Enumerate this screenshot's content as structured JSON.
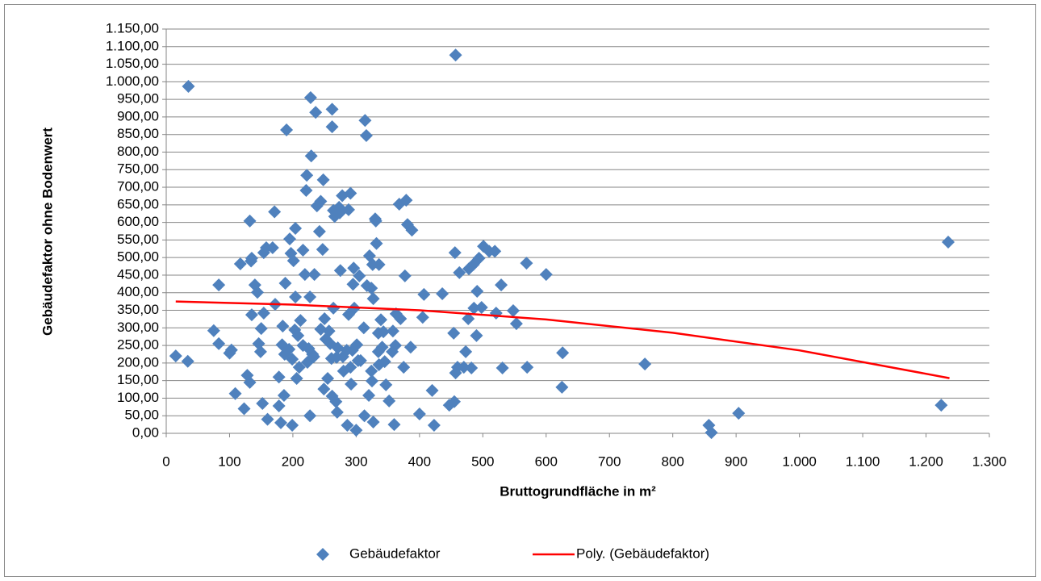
{
  "chart_data": {
    "type": "scatter",
    "x_label": "Bruttogrundfläche in m²",
    "y_label": "Gebäudefaktor ohne Bodenwert",
    "xlim": [
      0,
      1300
    ],
    "ylim": [
      0,
      1150
    ],
    "xticks": [
      0,
      100,
      200,
      300,
      400,
      500,
      600,
      700,
      800,
      900,
      {
        "value": 1000,
        "label": "1.000"
      },
      {
        "value": 1100,
        "label": "1.100"
      },
      {
        "value": 1200,
        "label": "1.200"
      },
      {
        "value": 1300,
        "label": "1.300"
      }
    ],
    "yticks": [
      {
        "value": 0,
        "label": "0,00"
      },
      {
        "value": 50,
        "label": "50,00"
      },
      {
        "value": 100,
        "label": "100,00"
      },
      {
        "value": 150,
        "label": "150,00"
      },
      {
        "value": 200,
        "label": "200,00"
      },
      {
        "value": 250,
        "label": "250,00"
      },
      {
        "value": 300,
        "label": "300,00"
      },
      {
        "value": 350,
        "label": "350,00"
      },
      {
        "value": 400,
        "label": "400,00"
      },
      {
        "value": 450,
        "label": "450,00"
      },
      {
        "value": 500,
        "label": "500,00"
      },
      {
        "value": 550,
        "label": "550,00"
      },
      {
        "value": 600,
        "label": "600,00"
      },
      {
        "value": 650,
        "label": "650,00"
      },
      {
        "value": 700,
        "label": "700,00"
      },
      {
        "value": 750,
        "label": "750,00"
      },
      {
        "value": 800,
        "label": "800,00"
      },
      {
        "value": 850,
        "label": "850,00"
      },
      {
        "value": 900,
        "label": "900,00"
      },
      {
        "value": 950,
        "label": "950,00"
      },
      {
        "value": 1000,
        "label": "1.000,00"
      },
      {
        "value": 1050,
        "label": "1.050,00"
      },
      {
        "value": 1100,
        "label": "1.100,00"
      },
      {
        "value": 1150,
        "label": "1.150,00"
      }
    ],
    "grid": true,
    "legend": "bottom",
    "series": [
      {
        "name": "Gebäudefaktor",
        "mark": "diamond",
        "color": "#4f81bd",
        "x": [
          15,
          34,
          35,
          75,
          83,
          83,
          100,
          103,
          109,
          123,
          117,
          128,
          132,
          132,
          134,
          135,
          135,
          140,
          144,
          146,
          149,
          150,
          152,
          154,
          154,
          158,
          160,
          168,
          171,
          172,
          178,
          178,
          181,
          183,
          184,
          186,
          187,
          188,
          190,
          194,
          195,
          197,
          199,
          199,
          201,
          203,
          204,
          204,
          206,
          208,
          210,
          212,
          216,
          216,
          219,
          221,
          222,
          223,
          225,
          227,
          227,
          228,
          229,
          231,
          233,
          234,
          236,
          238,
          242,
          244,
          244,
          247,
          248,
          249,
          250,
          252,
          255,
          257,
          259,
          261,
          262,
          262,
          262,
          264,
          264,
          266,
          268,
          269,
          270,
          271,
          273,
          274,
          275,
          278,
          279,
          280,
          285,
          286,
          288,
          288,
          291,
          292,
          291,
          294,
          295,
          296,
          297,
          300,
          301,
          303,
          305,
          307,
          312,
          313,
          314,
          316,
          317,
          320,
          321,
          324,
          324,
          325,
          326,
          327,
          327,
          330,
          331,
          332,
          335,
          335,
          336,
          336,
          339,
          341,
          343,
          345,
          347,
          352,
          357,
          358,
          360,
          362,
          363,
          368,
          370,
          375,
          377,
          379,
          381,
          386,
          388,
          400,
          405,
          407,
          420,
          423,
          436,
          447,
          454,
          455,
          456,
          457,
          457,
          460,
          463,
          470,
          473,
          477,
          478,
          482,
          485,
          486,
          490,
          491,
          494,
          498,
          501,
          510,
          519,
          521,
          529,
          531,
          548,
          553,
          570,
          569,
          600,
          626,
          625,
          756,
          857,
          861,
          904,
          1224,
          1235
        ],
        "values": [
          220,
          205,
          987,
          292,
          255,
          422,
          228,
          237,
          113,
          70,
          482,
          165,
          145,
          604,
          490,
          337,
          498,
          422,
          401,
          255,
          232,
          298,
          85,
          342,
          514,
          528,
          40,
          528,
          630,
          367,
          78,
          160,
          30,
          252,
          305,
          108,
          225,
          427,
          863,
          239,
          553,
          512,
          23,
          211,
          491,
          294,
          583,
          388,
          156,
          278,
          188,
          321,
          521,
          250,
          452,
          691,
          734,
          202,
          241,
          388,
          50,
          955,
          789,
          225,
          218,
          452,
          913,
          647,
          574,
          660,
          296,
          523,
          721,
          126,
          326,
          268,
          156,
          291,
          255,
          213,
          106,
          922,
          872,
          634,
          356,
          617,
          90,
          216,
          60,
          243,
          643,
          627,
          463,
          676,
          218,
          177,
          236,
          23,
          636,
          338,
          683,
          140,
          188,
          236,
          424,
          470,
          356,
          9,
          252,
          207,
          448,
          207,
          300,
          50,
          890,
          847,
          420,
          108,
          505,
          177,
          413,
          149,
          480,
          32,
          383,
          610,
          604,
          540,
          232,
          285,
          195,
          480,
          323,
          245,
          289,
          204,
          138,
          92,
          232,
          291,
          25,
          250,
          340,
          652,
          326,
          188,
          448,
          663,
          594,
          245,
          578,
          55,
          330,
          395,
          122,
          23,
          397,
          80,
          285,
          90,
          514,
          1076,
          172,
          188,
          457,
          188,
          232,
          326,
          468,
          186,
          480,
          356,
          278,
          404,
          498,
          358,
          532,
          518,
          518,
          342,
          422,
          186,
          349,
          312,
          188,
          484,
          452,
          229,
          131,
          197,
          23,
          2,
          57,
          80,
          544
        ]
      },
      {
        "name": "Poly. (Gebäudefaktor)",
        "mark": "line",
        "color": "#ff0000",
        "x": [
          15,
          200,
          400,
          600,
          800,
          1000,
          1237
        ],
        "values": [
          375,
          366,
          350,
          324,
          286,
          236,
          157
        ]
      }
    ]
  }
}
